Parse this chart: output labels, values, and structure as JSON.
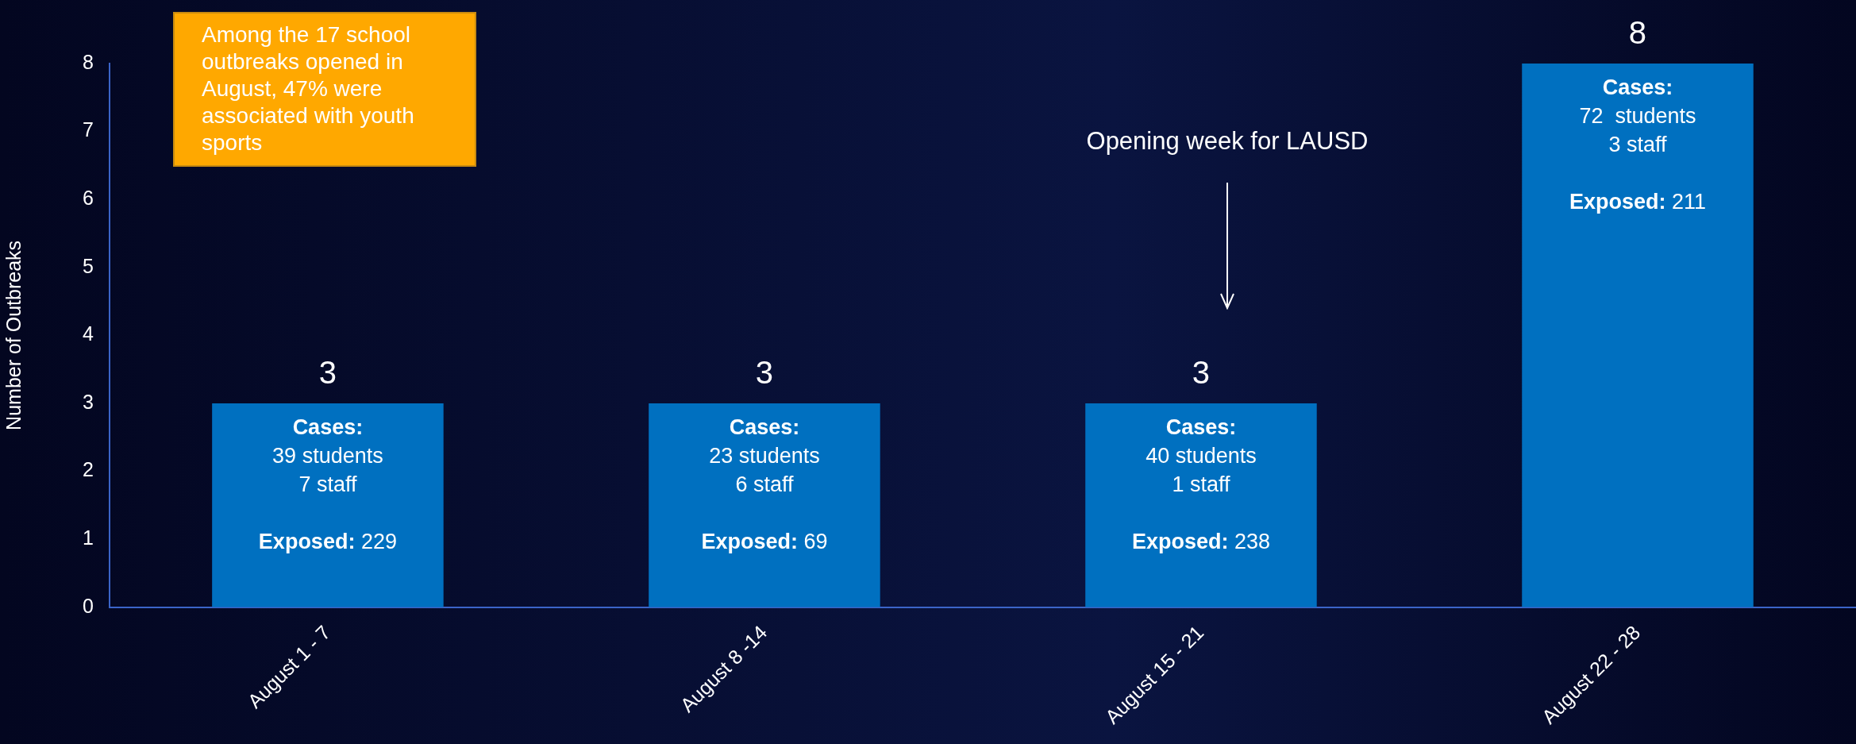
{
  "chart_data": {
    "type": "bar",
    "ylabel": "Number of Outbreaks",
    "categories": [
      "August 1 - 7",
      "August 8 -14",
      "August 15 - 21",
      "August 22 - 28"
    ],
    "values": [
      3,
      3,
      3,
      8
    ],
    "color": "#0070c0",
    "ylim": [
      0,
      8
    ],
    "yticks": [
      0,
      1,
      2,
      3,
      4,
      5,
      6,
      7,
      8
    ],
    "grid": false,
    "legend": false,
    "data_labels": true,
    "annotations": [
      "Among the 17 school outbreaks opened in August, 47% were associated with youth sports",
      "Opening week for LAUSD",
      {
        "text": "Cases:",
        "x": "August 1 - 7",
        "y": 3
      },
      {
        "text": "39 students",
        "x": "August 1 - 7",
        "y": 3
      },
      "7 staff",
      "Exposed: 229",
      {
        "text": "Cases:",
        "x": "August 8 -14",
        "y": 3
      },
      {
        "text": "23 students",
        "x": "August 8 -14",
        "y": 3
      },
      "6 staff",
      "Exposed: 69",
      {
        "text": "Cases:",
        "x": "August 15 - 21",
        "y": 3
      },
      {
        "text": "40 students",
        "x": "August 15 - 21",
        "y": 3
      },
      "1 staff",
      "Exposed: 238",
      {
        "text": "Cases:",
        "x": "August 22 - 28",
        "y": 8
      },
      {
        "text": "72  students",
        "x": "August 22 - 28",
        "y": 8
      },
      "3 staff",
      "Exposed: 211"
    ]
  }
}
